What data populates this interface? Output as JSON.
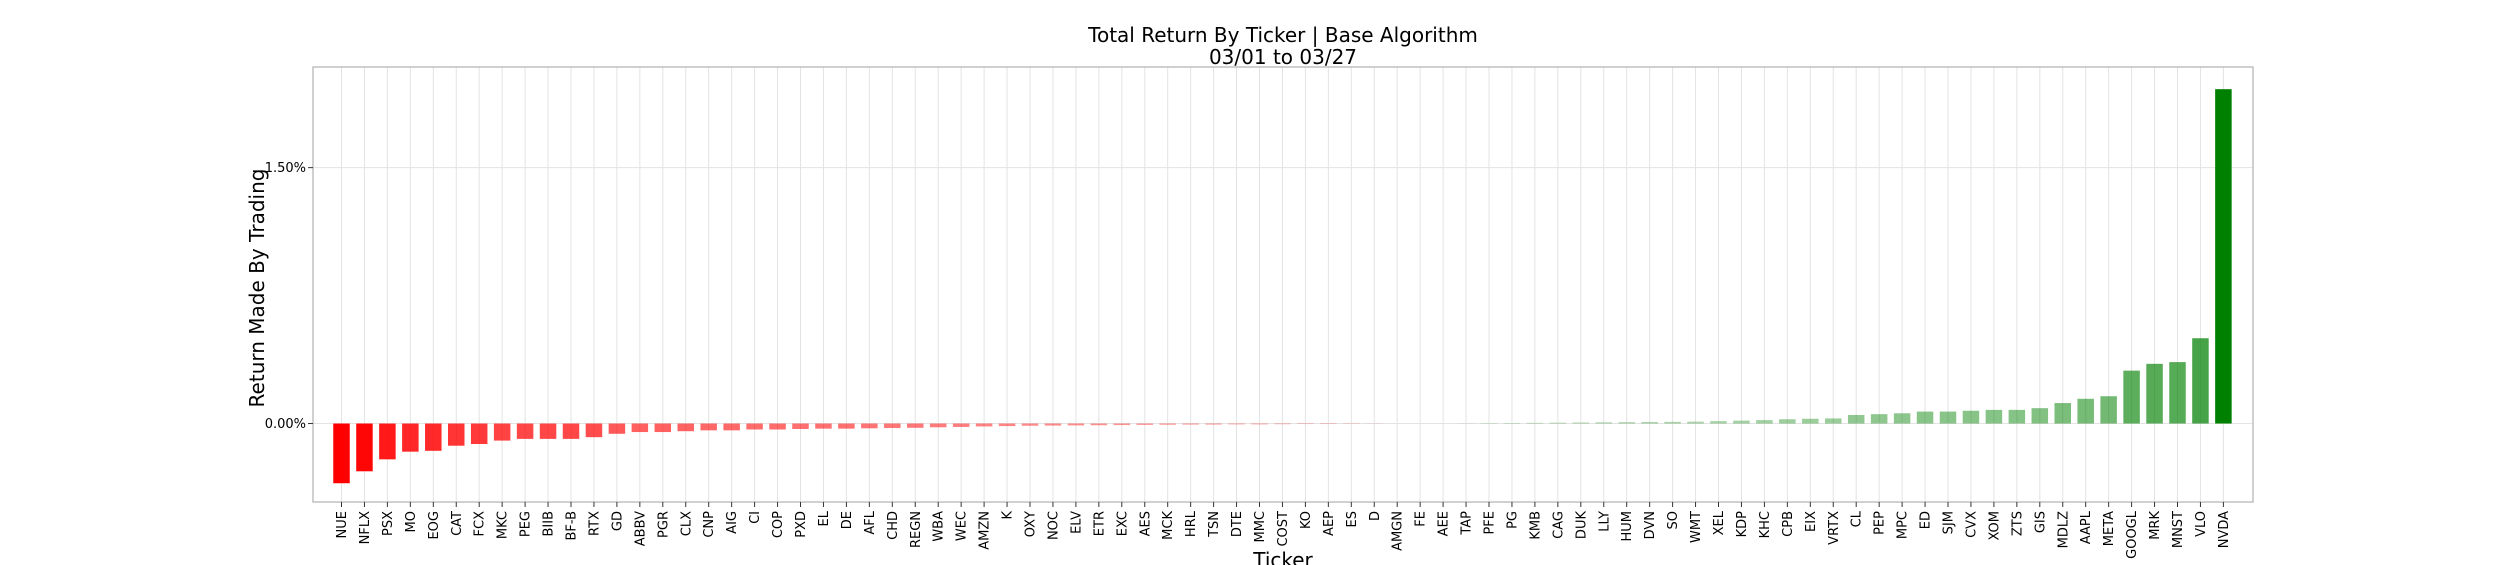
{
  "chart_data": {
    "type": "bar",
    "title": "Total Return By Ticker | Base Algorithm",
    "subtitle": "03/01 to 03/27",
    "xlabel": "Ticker",
    "ylabel": "Return Made By Trading",
    "y_unit": "%",
    "ylim": [
      -0.46,
      2.09
    ],
    "y_ticks": [
      0.0,
      1.5
    ],
    "y_tick_labels": [
      "0.00%",
      "1.50%"
    ],
    "grid": true,
    "legend": "none",
    "colors": {
      "positive": "#008000",
      "negative": "#ff0000"
    },
    "categories": [
      "NUE",
      "NFLX",
      "PSX",
      "MO",
      "EOG",
      "CAT",
      "FCX",
      "MKC",
      "PEG",
      "BIIB",
      "BF-B",
      "RTX",
      "GD",
      "ABBV",
      "PGR",
      "CLX",
      "CNP",
      "AIG",
      "CI",
      "COP",
      "PXD",
      "EL",
      "DE",
      "AFL",
      "CHD",
      "REGN",
      "WBA",
      "WEC",
      "AMZN",
      "K",
      "OXY",
      "NOC",
      "ELV",
      "ETR",
      "EXC",
      "AES",
      "MCK",
      "HRL",
      "TSN",
      "DTE",
      "MMC",
      "COST",
      "KO",
      "AEP",
      "ES",
      "D",
      "AMGN",
      "FE",
      "AEE",
      "TAP",
      "PFE",
      "PG",
      "KMB",
      "CAG",
      "DUK",
      "LLY",
      "HUM",
      "DVN",
      "SO",
      "WMT",
      "XEL",
      "KDP",
      "KHC",
      "CPB",
      "EIX",
      "VRTX",
      "CL",
      "PEP",
      "MPC",
      "ED",
      "SJM",
      "CVX",
      "XOM",
      "ZTS",
      "GIS",
      "MDLZ",
      "AAPL",
      "META",
      "GOOGL",
      "MRK",
      "MNST",
      "VLO",
      "NVDA"
    ],
    "values": [
      -0.35,
      -0.28,
      -0.21,
      -0.165,
      -0.16,
      -0.13,
      -0.12,
      -0.1,
      -0.09,
      -0.09,
      -0.09,
      -0.08,
      -0.06,
      -0.05,
      -0.05,
      -0.045,
      -0.04,
      -0.04,
      -0.035,
      -0.035,
      -0.032,
      -0.03,
      -0.03,
      -0.028,
      -0.026,
      -0.025,
      -0.022,
      -0.02,
      -0.017,
      -0.015,
      -0.013,
      -0.012,
      -0.011,
      -0.01,
      -0.009,
      -0.008,
      -0.007,
      -0.006,
      -0.006,
      -0.005,
      -0.005,
      -0.004,
      -0.003,
      -0.003,
      -0.002,
      -0.001,
      0.0,
      0.0,
      0.0,
      0.001,
      0.002,
      0.003,
      0.004,
      0.005,
      0.006,
      0.007,
      0.008,
      0.009,
      0.01,
      0.011,
      0.014,
      0.017,
      0.02,
      0.025,
      0.028,
      0.03,
      0.05,
      0.055,
      0.06,
      0.07,
      0.07,
      0.075,
      0.08,
      0.08,
      0.09,
      0.12,
      0.145,
      0.16,
      0.31,
      0.35,
      0.36,
      0.5,
      1.96
    ]
  }
}
